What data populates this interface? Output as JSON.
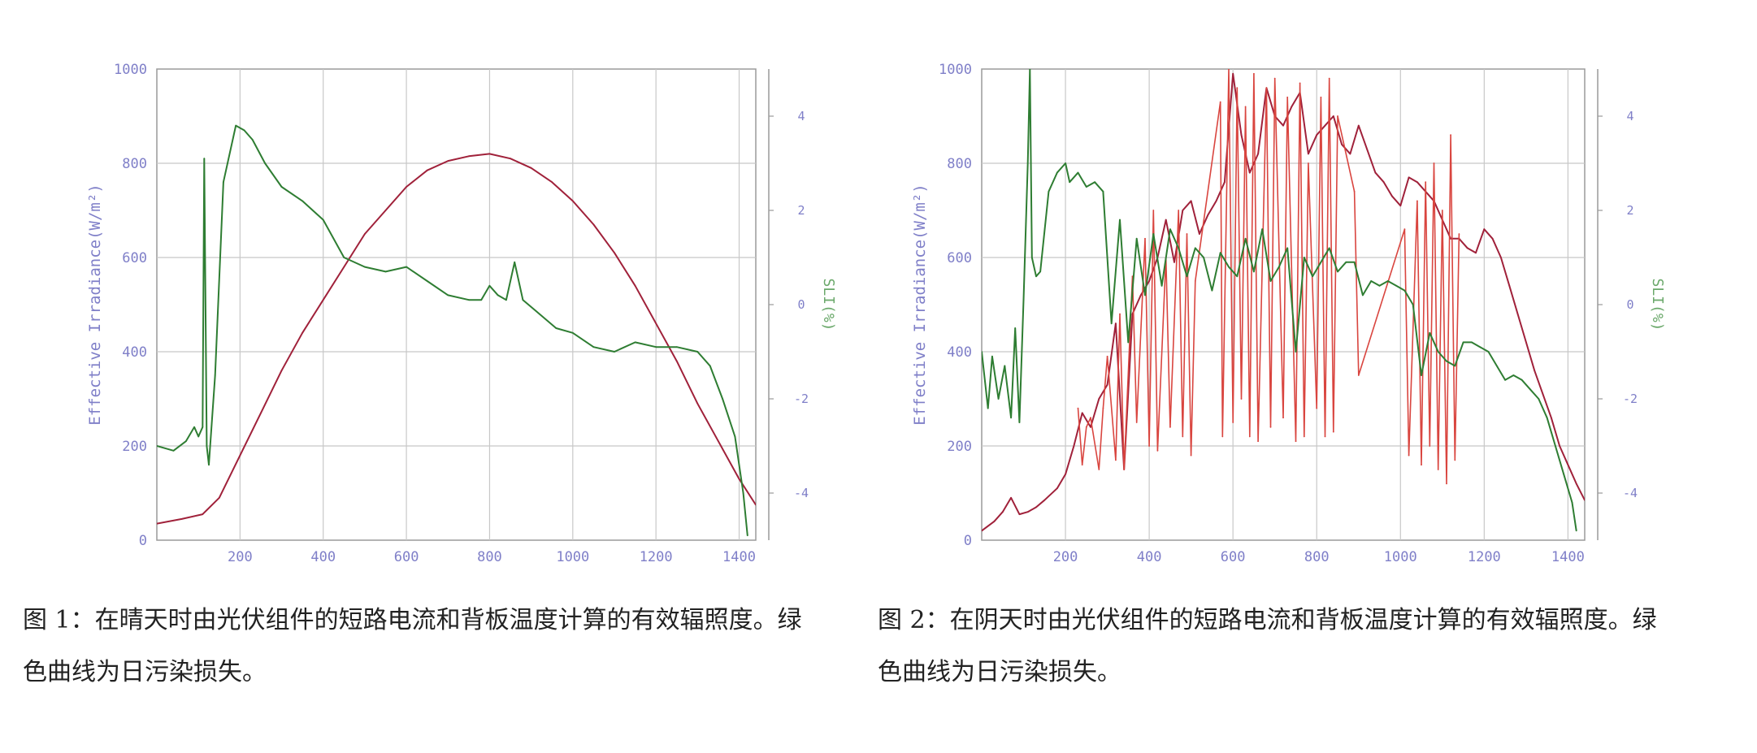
{
  "chart_data": [
    {
      "type": "line",
      "ylabel": "Effective Irradiance(W/m²)",
      "y2label": "SLI(%)",
      "xlim": [
        0,
        1440
      ],
      "ylim": [
        0,
        1000
      ],
      "y2lim": [
        -5,
        5
      ],
      "xticks": [
        200,
        400,
        600,
        800,
        1000,
        1200,
        1400
      ],
      "yticks": [
        0,
        200,
        400,
        600,
        800,
        1000
      ],
      "y2ticks": [
        4,
        2,
        0,
        -2,
        -4
      ],
      "grid": true,
      "colors": {
        "irradiance": "#a0213a",
        "sli": "#2e7d32"
      },
      "series": [
        {
          "key": "irradiance",
          "axis": "left",
          "x": [
            0,
            60,
            110,
            150,
            200,
            250,
            300,
            350,
            400,
            450,
            500,
            550,
            600,
            650,
            700,
            750,
            800,
            850,
            900,
            950,
            1000,
            1050,
            1100,
            1150,
            1200,
            1250,
            1300,
            1350,
            1400,
            1440
          ],
          "y": [
            35,
            45,
            55,
            90,
            180,
            270,
            360,
            440,
            510,
            580,
            650,
            700,
            750,
            785,
            805,
            815,
            820,
            810,
            790,
            760,
            720,
            670,
            610,
            540,
            460,
            380,
            290,
            210,
            130,
            75
          ]
        },
        {
          "key": "sli",
          "axis": "right",
          "x": [
            0,
            40,
            70,
            90,
            100,
            110,
            114,
            120,
            125,
            140,
            160,
            190,
            210,
            230,
            260,
            300,
            350,
            400,
            450,
            500,
            550,
            600,
            650,
            700,
            750,
            780,
            800,
            820,
            840,
            860,
            880,
            920,
            960,
            1000,
            1050,
            1100,
            1150,
            1200,
            1250,
            1300,
            1330,
            1360,
            1390,
            1410,
            1420
          ],
          "y": [
            -3.0,
            -3.1,
            -2.9,
            -2.6,
            -2.8,
            -2.6,
            3.1,
            -3.0,
            -3.4,
            -1.5,
            2.6,
            3.8,
            3.7,
            3.5,
            3.0,
            2.5,
            2.2,
            1.8,
            1.0,
            0.8,
            0.7,
            0.8,
            0.5,
            0.2,
            0.1,
            0.1,
            0.4,
            0.2,
            0.1,
            0.9,
            0.1,
            -0.2,
            -0.5,
            -0.6,
            -0.9,
            -1.0,
            -0.8,
            -0.9,
            -0.9,
            -1.0,
            -1.3,
            -2.0,
            -2.8,
            -4.0,
            -4.9
          ]
        }
      ]
    },
    {
      "type": "line",
      "ylabel": "Effective Irradiance(W/m²)",
      "y2label": "SLI(%)",
      "xlim": [
        0,
        1440
      ],
      "ylim": [
        0,
        1000
      ],
      "y2lim": [
        -5,
        5
      ],
      "xticks": [
        200,
        400,
        600,
        800,
        1000,
        1200,
        1400
      ],
      "yticks": [
        0,
        200,
        400,
        600,
        800,
        1000
      ],
      "y2ticks": [
        4,
        2,
        0,
        -2,
        -4
      ],
      "grid": true,
      "colors": {
        "irradiance": "#a0213a",
        "spikes": "#d9453f",
        "sli": "#2e7d32"
      },
      "series": [
        {
          "key": "irradiance",
          "axis": "left",
          "x": [
            0,
            30,
            50,
            70,
            90,
            110,
            130,
            150,
            180,
            200,
            220,
            240,
            260,
            280,
            300,
            320,
            340,
            360,
            380,
            400,
            420,
            440,
            460,
            480,
            500,
            520,
            540,
            560,
            580,
            600,
            620,
            640,
            660,
            680,
            700,
            720,
            740,
            760,
            780,
            800,
            820,
            840,
            860,
            880,
            900,
            920,
            940,
            960,
            980,
            1000,
            1020,
            1040,
            1060,
            1080,
            1100,
            1120,
            1140,
            1160,
            1180,
            1200,
            1220,
            1240,
            1260,
            1280,
            1300,
            1320,
            1340,
            1360,
            1380,
            1400,
            1420,
            1440
          ],
          "y": [
            20,
            40,
            60,
            90,
            55,
            60,
            70,
            85,
            110,
            140,
            200,
            270,
            240,
            300,
            330,
            460,
            150,
            480,
            520,
            550,
            600,
            680,
            590,
            700,
            720,
            650,
            690,
            720,
            760,
            990,
            860,
            780,
            820,
            960,
            900,
            880,
            920,
            950,
            820,
            860,
            880,
            900,
            840,
            820,
            880,
            830,
            780,
            760,
            730,
            710,
            770,
            760,
            740,
            720,
            680,
            640,
            640,
            620,
            610,
            660,
            640,
            600,
            540,
            480,
            420,
            360,
            310,
            260,
            200,
            160,
            120,
            85
          ]
        },
        {
          "key": "spikes",
          "axis": "left",
          "x": [
            230,
            240,
            250,
            260,
            280,
            290,
            300,
            320,
            330,
            340,
            360,
            370,
            390,
            400,
            410,
            420,
            440,
            450,
            470,
            480,
            490,
            500,
            510,
            570,
            575,
            590,
            600,
            610,
            620,
            630,
            640,
            650,
            660,
            680,
            690,
            700,
            720,
            730,
            750,
            760,
            770,
            780,
            800,
            810,
            820,
            830,
            840,
            850,
            890,
            900,
            1010,
            1020,
            1040,
            1050,
            1060,
            1070,
            1080,
            1090,
            1100,
            1110,
            1120,
            1130,
            1140
          ],
          "y": [
            280,
            160,
            240,
            260,
            150,
            280,
            390,
            170,
            480,
            150,
            560,
            250,
            640,
            200,
            700,
            190,
            600,
            240,
            700,
            220,
            650,
            180,
            550,
            930,
            220,
            1000,
            250,
            960,
            300,
            920,
            220,
            990,
            210,
            960,
            240,
            980,
            260,
            940,
            210,
            970,
            220,
            800,
            280,
            940,
            220,
            980,
            230,
            900,
            740,
            350,
            660,
            180,
            720,
            160,
            760,
            200,
            800,
            150,
            700,
            120,
            860,
            170,
            650
          ]
        },
        {
          "key": "sli",
          "axis": "right",
          "x": [
            0,
            15,
            25,
            40,
            55,
            70,
            80,
            90,
            100,
            110,
            115,
            120,
            130,
            140,
            160,
            180,
            200,
            210,
            230,
            250,
            270,
            290,
            310,
            330,
            350,
            370,
            390,
            410,
            430,
            450,
            470,
            490,
            510,
            530,
            550,
            570,
            590,
            610,
            630,
            650,
            670,
            690,
            710,
            730,
            750,
            770,
            790,
            810,
            830,
            850,
            870,
            890,
            910,
            930,
            950,
            970,
            990,
            1010,
            1030,
            1050,
            1070,
            1090,
            1110,
            1130,
            1150,
            1170,
            1190,
            1210,
            1230,
            1250,
            1270,
            1290,
            1310,
            1330,
            1350,
            1370,
            1390,
            1410,
            1420
          ],
          "y": [
            -1.0,
            -2.2,
            -1.1,
            -2.0,
            -1.3,
            -2.4,
            -0.5,
            -2.5,
            0.1,
            3.0,
            5.0,
            1.0,
            0.6,
            0.7,
            2.4,
            2.8,
            3.0,
            2.6,
            2.8,
            2.5,
            2.6,
            2.4,
            -0.4,
            1.8,
            -0.8,
            1.4,
            0.2,
            1.5,
            0.4,
            1.6,
            1.2,
            0.6,
            1.2,
            1.0,
            0.3,
            1.1,
            0.8,
            0.6,
            1.4,
            0.7,
            1.6,
            0.5,
            0.8,
            1.2,
            -1.0,
            1.0,
            0.6,
            0.9,
            1.2,
            0.7,
            0.9,
            0.9,
            0.2,
            0.5,
            0.4,
            0.5,
            0.4,
            0.3,
            0.0,
            -1.5,
            -0.6,
            -1.0,
            -1.2,
            -1.3,
            -0.8,
            -0.8,
            -0.9,
            -1.0,
            -1.3,
            -1.6,
            -1.5,
            -1.6,
            -1.8,
            -2.0,
            -2.4,
            -3.0,
            -3.6,
            -4.2,
            -4.8
          ]
        }
      ]
    }
  ],
  "captions": {
    "fig1_line1": "图 1：在晴天时由光伏组件的短路电流和背板温度计算的有效辐照度。绿",
    "fig1_line2": "色曲线为日污染损失。",
    "fig2_line1": "图 2：在阴天时由光伏组件的短路电流和背板温度计算的有效辐照度。绿",
    "fig2_line2": "色曲线为日污染损失。"
  }
}
